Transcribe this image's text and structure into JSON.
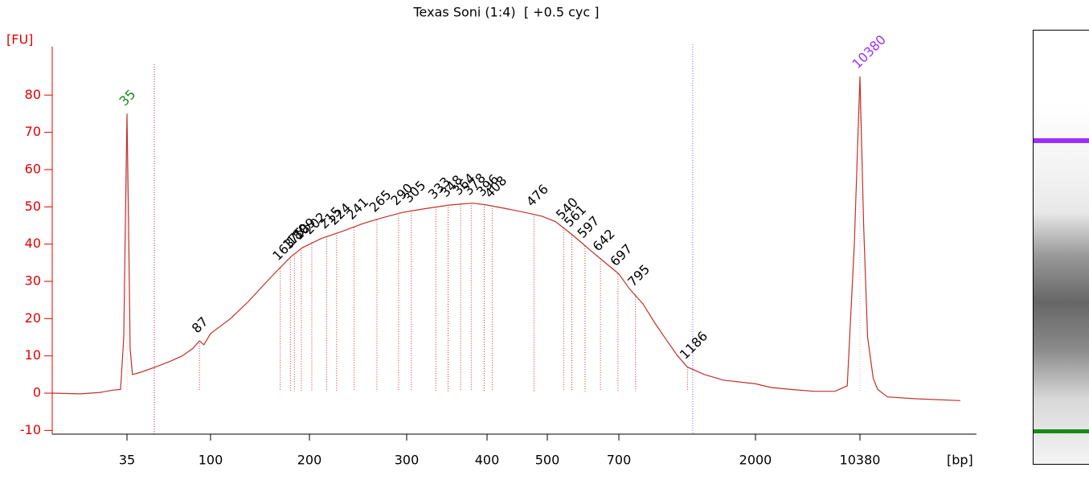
{
  "chart_data": {
    "type": "line",
    "title": "Texas Soni (1:4)  [ +0.5 cyc ]",
    "y_label": "[FU]",
    "x_label": "[bp]",
    "color": "#c0302a",
    "axis_color": "#e00000",
    "ylim": [
      -11,
      93
    ],
    "yticks": [
      -10,
      0,
      10,
      20,
      30,
      40,
      50,
      60,
      70,
      80
    ],
    "xticks": [
      35,
      100,
      200,
      300,
      400,
      500,
      700,
      2000,
      10380
    ],
    "x": [
      13.7,
      19.5,
      25,
      29.2,
      32.3,
      33.6,
      34.4,
      35,
      35.7,
      36.4,
      37.5,
      41,
      50,
      60,
      70,
      80,
      87,
      92,
      100,
      115,
      130,
      145,
      160,
      175,
      190,
      210,
      230,
      250,
      270,
      295,
      320,
      350,
      380,
      400,
      430,
      460,
      490,
      520,
      550,
      580,
      610,
      650,
      700,
      760,
      842,
      920,
      1014,
      1100,
      1186,
      1350,
      1561,
      2000,
      2576,
      3500,
      5000,
      7000,
      8500,
      9500,
      10380,
      11000,
      11700,
      12800,
      13720,
      16000,
      25000,
      50500
    ],
    "values": [
      0,
      -0.2,
      0.2,
      0.8,
      1,
      15,
      50,
      75,
      45,
      12,
      5,
      5.5,
      7,
      8.5,
      10,
      12,
      14,
      13,
      16,
      20,
      24.5,
      29,
      33,
      36.5,
      39,
      41.5,
      43.5,
      45.5,
      47,
      48.5,
      49.5,
      50.5,
      51,
      50.5,
      49.5,
      48.5,
      47.5,
      46,
      43.5,
      41,
      38.5,
      35.5,
      32,
      28,
      24,
      19,
      14,
      10,
      7,
      5,
      3.5,
      2.5,
      1.5,
      1,
      0.5,
      0.5,
      2,
      40,
      85,
      45,
      15,
      4,
      1,
      -1,
      -1.5,
      -2
    ],
    "markers": [
      {
        "size": 35,
        "fu": 75,
        "color": "#1a8a1a"
      },
      {
        "size": 10380,
        "fu": 85,
        "color": "#9b30ff"
      }
    ],
    "peaks": [
      {
        "size": 87,
        "fu": 14
      },
      {
        "size": 163,
        "fu": 33.5
      },
      {
        "size": 175,
        "fu": 36.5
      },
      {
        "size": 180,
        "fu": 37.5
      },
      {
        "size": 189,
        "fu": 39
      },
      {
        "size": 202,
        "fu": 40.5
      },
      {
        "size": 215,
        "fu": 42
      },
      {
        "size": 224,
        "fu": 43
      },
      {
        "size": 241,
        "fu": 44.5
      },
      {
        "size": 265,
        "fu": 46.5
      },
      {
        "size": 290,
        "fu": 48.3
      },
      {
        "size": 305,
        "fu": 49
      },
      {
        "size": 333,
        "fu": 50
      },
      {
        "size": 348,
        "fu": 50.5
      },
      {
        "size": 364,
        "fu": 51
      },
      {
        "size": 378,
        "fu": 51
      },
      {
        "size": 396,
        "fu": 50.7
      },
      {
        "size": 408,
        "fu": 50.3
      },
      {
        "size": 476,
        "fu": 48
      },
      {
        "size": 540,
        "fu": 44.5
      },
      {
        "size": 561,
        "fu": 42.5
      },
      {
        "size": 597,
        "fu": 39.5
      },
      {
        "size": 642,
        "fu": 36
      },
      {
        "size": 697,
        "fu": 32
      },
      {
        "size": 795,
        "fu": 26.5
      },
      {
        "size": 1186,
        "fu": 7
      }
    ]
  }
}
